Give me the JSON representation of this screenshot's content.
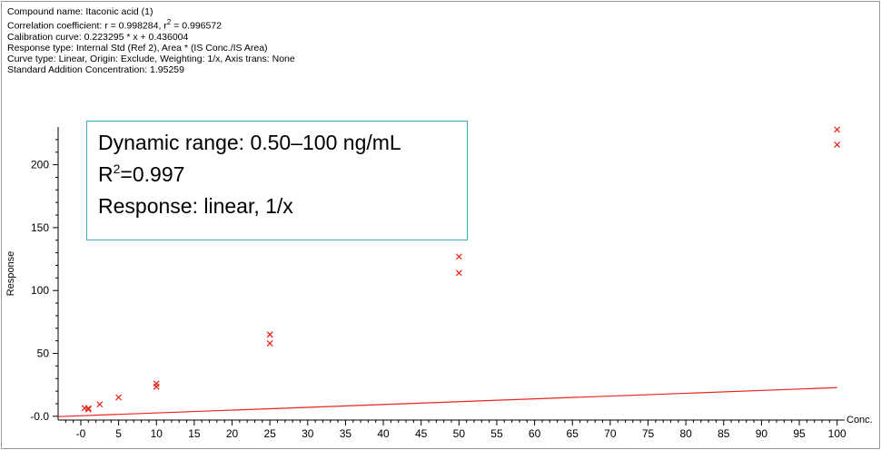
{
  "header": {
    "compound": "Compound name: Itaconic acid (1)",
    "correlation_prefix": "Correlation coefficient: r = 0.998284, r",
    "correlation_sup": "2",
    "correlation_suffix": " = 0.996572",
    "calibration": "Calibration curve: 0.223295 * x + 0.436004",
    "response_type": "Response type: Internal Std (Ref 2), Area * (IS Conc./IS Area)",
    "curve_type": "Curve type: Linear, Origin: Exclude, Weighting: 1/x, Axis trans: None",
    "std_addition": "Standard Addition Concentration: 1.95259"
  },
  "annotation": {
    "line1": "Dynamic range: 0.50–100 ng/mL",
    "line2_prefix": "R",
    "line2_sup": "2",
    "line2_suffix": "=0.997",
    "line3": "Response: linear, 1/x"
  },
  "colors": {
    "series": "#e8261c",
    "box_border": "#3fa9c9"
  },
  "chart_data": {
    "type": "scatter",
    "xlabel": "Conc.",
    "ylabel": "Response",
    "xlim": [
      -3,
      101
    ],
    "ylim": [
      -3,
      230
    ],
    "x_ticks": [
      0,
      5,
      10,
      15,
      20,
      25,
      30,
      35,
      40,
      45,
      50,
      55,
      60,
      65,
      70,
      75,
      80,
      85,
      90,
      95,
      100
    ],
    "x_tick_labels": [
      "-0",
      "5",
      "10",
      "15",
      "20",
      "25",
      "30",
      "35",
      "40",
      "45",
      "50",
      "55",
      "60",
      "65",
      "70",
      "75",
      "80",
      "85",
      "90",
      "95",
      "100"
    ],
    "y_ticks": [
      0,
      50,
      100,
      150,
      200
    ],
    "y_tick_labels": [
      "-0.0",
      "50",
      "100",
      "150",
      "200"
    ],
    "points": [
      {
        "x": 0.5,
        "y": 6.5
      },
      {
        "x": 1,
        "y": 5.5
      },
      {
        "x": 1,
        "y": 6.3
      },
      {
        "x": 2.5,
        "y": 9.5
      },
      {
        "x": 5,
        "y": 15
      },
      {
        "x": 10,
        "y": 23.5
      },
      {
        "x": 10,
        "y": 26
      },
      {
        "x": 25,
        "y": 58
      },
      {
        "x": 25,
        "y": 65
      },
      {
        "x": 50,
        "y": 114
      },
      {
        "x": 50,
        "y": 127
      },
      {
        "x": 100,
        "y": 216
      },
      {
        "x": 100,
        "y": 228
      }
    ],
    "fit": {
      "slope": 0.223295,
      "intercept": 0.436004,
      "x_range": [
        -3,
        100
      ]
    }
  }
}
